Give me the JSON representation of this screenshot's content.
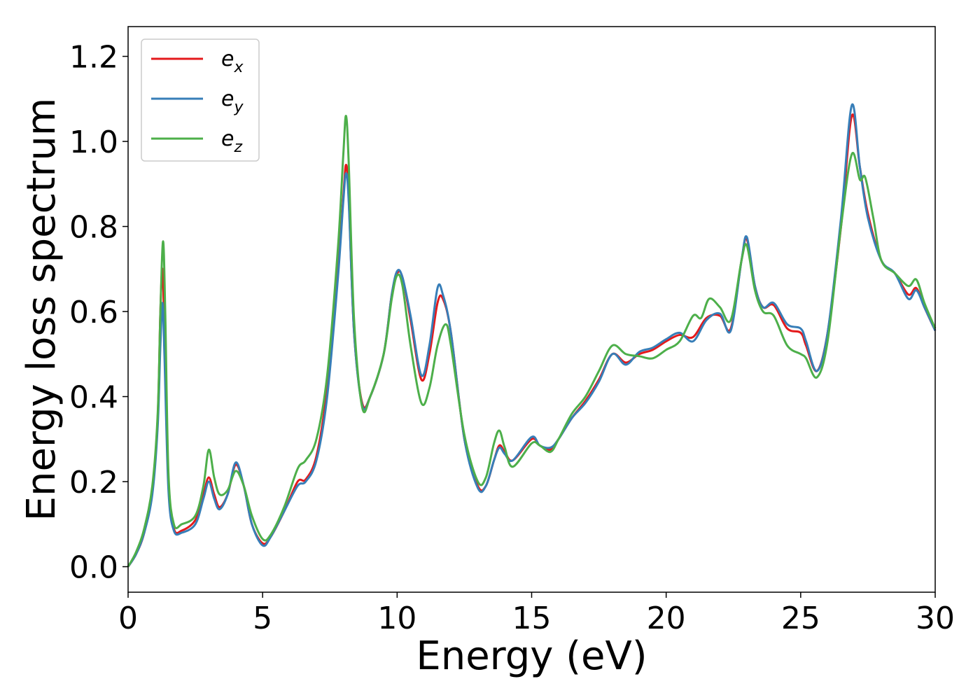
{
  "chart_data": {
    "type": "line",
    "xlabel": "Energy (eV)",
    "ylabel": "Energy loss spectrum",
    "xlim": [
      0,
      30
    ],
    "ylim": [
      -0.06,
      1.27
    ],
    "xticks": [
      "0",
      "5",
      "10",
      "15",
      "20",
      "25",
      "30"
    ],
    "yticks": [
      "0.0",
      "0.2",
      "0.4",
      "0.6",
      "0.8",
      "1.0",
      "1.2"
    ],
    "grid": false,
    "legend_position": "top-left",
    "series": [
      {
        "name": "e_x",
        "label_base": "e",
        "label_sub": "x",
        "color": "#e41a1c",
        "points": [
          [
            0,
            0
          ],
          [
            0.3,
            0.03
          ],
          [
            0.6,
            0.08
          ],
          [
            0.9,
            0.18
          ],
          [
            1.1,
            0.35
          ],
          [
            1.2,
            0.6
          ],
          [
            1.28,
            0.7
          ],
          [
            1.35,
            0.55
          ],
          [
            1.5,
            0.2
          ],
          [
            1.7,
            0.09
          ],
          [
            2.0,
            0.085
          ],
          [
            2.5,
            0.11
          ],
          [
            2.8,
            0.17
          ],
          [
            3.0,
            0.21
          ],
          [
            3.2,
            0.17
          ],
          [
            3.4,
            0.14
          ],
          [
            3.7,
            0.17
          ],
          [
            4.0,
            0.24
          ],
          [
            4.3,
            0.19
          ],
          [
            4.6,
            0.1
          ],
          [
            5.0,
            0.055
          ],
          [
            5.3,
            0.07
          ],
          [
            5.8,
            0.13
          ],
          [
            6.3,
            0.2
          ],
          [
            6.6,
            0.205
          ],
          [
            7.0,
            0.26
          ],
          [
            7.4,
            0.42
          ],
          [
            7.8,
            0.7
          ],
          [
            8.0,
            0.87
          ],
          [
            8.1,
            0.945
          ],
          [
            8.2,
            0.87
          ],
          [
            8.4,
            0.55
          ],
          [
            8.7,
            0.385
          ],
          [
            9.0,
            0.4
          ],
          [
            9.5,
            0.5
          ],
          [
            9.8,
            0.64
          ],
          [
            10.0,
            0.69
          ],
          [
            10.2,
            0.68
          ],
          [
            10.5,
            0.58
          ],
          [
            10.9,
            0.44
          ],
          [
            11.2,
            0.5
          ],
          [
            11.5,
            0.62
          ],
          [
            11.7,
            0.63
          ],
          [
            12.0,
            0.55
          ],
          [
            12.5,
            0.3
          ],
          [
            13.0,
            0.19
          ],
          [
            13.3,
            0.19
          ],
          [
            13.6,
            0.25
          ],
          [
            13.8,
            0.285
          ],
          [
            14.0,
            0.27
          ],
          [
            14.3,
            0.25
          ],
          [
            15.0,
            0.3
          ],
          [
            15.3,
            0.285
          ],
          [
            15.7,
            0.275
          ],
          [
            16.0,
            0.3
          ],
          [
            16.5,
            0.35
          ],
          [
            17.0,
            0.39
          ],
          [
            17.5,
            0.44
          ],
          [
            18.0,
            0.5
          ],
          [
            18.5,
            0.48
          ],
          [
            19.0,
            0.5
          ],
          [
            19.5,
            0.51
          ],
          [
            20.0,
            0.53
          ],
          [
            20.5,
            0.545
          ],
          [
            21.0,
            0.54
          ],
          [
            21.5,
            0.585
          ],
          [
            22.0,
            0.59
          ],
          [
            22.4,
            0.56
          ],
          [
            22.8,
            0.72
          ],
          [
            23.0,
            0.77
          ],
          [
            23.3,
            0.66
          ],
          [
            23.6,
            0.61
          ],
          [
            24.0,
            0.615
          ],
          [
            24.5,
            0.56
          ],
          [
            25.0,
            0.55
          ],
          [
            25.2,
            0.52
          ],
          [
            25.6,
            0.46
          ],
          [
            26.0,
            0.55
          ],
          [
            26.5,
            0.8
          ],
          [
            26.9,
            1.06
          ],
          [
            27.2,
            0.94
          ],
          [
            27.5,
            0.83
          ],
          [
            28.0,
            0.72
          ],
          [
            28.5,
            0.69
          ],
          [
            29.0,
            0.64
          ],
          [
            29.3,
            0.655
          ],
          [
            29.6,
            0.61
          ],
          [
            30.0,
            0.555
          ]
        ]
      },
      {
        "name": "e_y",
        "label_base": "e",
        "label_sub": "y",
        "color": "#377eb8",
        "points": [
          [
            0,
            0
          ],
          [
            0.3,
            0.03
          ],
          [
            0.6,
            0.08
          ],
          [
            0.9,
            0.17
          ],
          [
            1.1,
            0.33
          ],
          [
            1.2,
            0.52
          ],
          [
            1.28,
            0.62
          ],
          [
            1.35,
            0.5
          ],
          [
            1.5,
            0.18
          ],
          [
            1.7,
            0.085
          ],
          [
            2.0,
            0.08
          ],
          [
            2.5,
            0.1
          ],
          [
            2.8,
            0.16
          ],
          [
            3.0,
            0.2
          ],
          [
            3.2,
            0.16
          ],
          [
            3.4,
            0.135
          ],
          [
            3.7,
            0.17
          ],
          [
            4.0,
            0.245
          ],
          [
            4.3,
            0.19
          ],
          [
            4.6,
            0.1
          ],
          [
            5.0,
            0.05
          ],
          [
            5.3,
            0.07
          ],
          [
            5.8,
            0.13
          ],
          [
            6.3,
            0.19
          ],
          [
            6.6,
            0.2
          ],
          [
            7.0,
            0.25
          ],
          [
            7.4,
            0.4
          ],
          [
            7.8,
            0.68
          ],
          [
            8.0,
            0.86
          ],
          [
            8.1,
            0.925
          ],
          [
            8.2,
            0.86
          ],
          [
            8.4,
            0.55
          ],
          [
            8.7,
            0.38
          ],
          [
            9.0,
            0.4
          ],
          [
            9.5,
            0.5
          ],
          [
            9.8,
            0.64
          ],
          [
            10.0,
            0.695
          ],
          [
            10.2,
            0.68
          ],
          [
            10.5,
            0.59
          ],
          [
            10.9,
            0.45
          ],
          [
            11.2,
            0.52
          ],
          [
            11.5,
            0.655
          ],
          [
            11.7,
            0.64
          ],
          [
            12.0,
            0.55
          ],
          [
            12.5,
            0.3
          ],
          [
            13.0,
            0.185
          ],
          [
            13.3,
            0.19
          ],
          [
            13.6,
            0.25
          ],
          [
            13.8,
            0.28
          ],
          [
            14.0,
            0.265
          ],
          [
            14.3,
            0.25
          ],
          [
            15.0,
            0.305
          ],
          [
            15.3,
            0.285
          ],
          [
            15.7,
            0.28
          ],
          [
            16.0,
            0.3
          ],
          [
            16.5,
            0.35
          ],
          [
            17.0,
            0.385
          ],
          [
            17.5,
            0.435
          ],
          [
            18.0,
            0.5
          ],
          [
            18.5,
            0.475
          ],
          [
            19.0,
            0.505
          ],
          [
            19.5,
            0.515
          ],
          [
            20.0,
            0.535
          ],
          [
            20.5,
            0.55
          ],
          [
            21.0,
            0.53
          ],
          [
            21.5,
            0.58
          ],
          [
            22.0,
            0.595
          ],
          [
            22.4,
            0.555
          ],
          [
            22.8,
            0.72
          ],
          [
            23.0,
            0.775
          ],
          [
            23.3,
            0.66
          ],
          [
            23.6,
            0.61
          ],
          [
            24.0,
            0.62
          ],
          [
            24.5,
            0.57
          ],
          [
            25.0,
            0.56
          ],
          [
            25.2,
            0.53
          ],
          [
            25.6,
            0.46
          ],
          [
            26.0,
            0.55
          ],
          [
            26.5,
            0.82
          ],
          [
            26.9,
            1.085
          ],
          [
            27.2,
            0.94
          ],
          [
            27.5,
            0.82
          ],
          [
            28.0,
            0.72
          ],
          [
            28.5,
            0.69
          ],
          [
            29.0,
            0.63
          ],
          [
            29.3,
            0.65
          ],
          [
            29.6,
            0.61
          ],
          [
            30.0,
            0.555
          ]
        ]
      },
      {
        "name": "e_z",
        "label_base": "e",
        "label_sub": "z",
        "color": "#4daf4a",
        "points": [
          [
            0,
            0
          ],
          [
            0.3,
            0.035
          ],
          [
            0.6,
            0.09
          ],
          [
            0.9,
            0.19
          ],
          [
            1.1,
            0.36
          ],
          [
            1.2,
            0.6
          ],
          [
            1.3,
            0.765
          ],
          [
            1.38,
            0.6
          ],
          [
            1.5,
            0.22
          ],
          [
            1.7,
            0.1
          ],
          [
            2.0,
            0.1
          ],
          [
            2.5,
            0.12
          ],
          [
            2.8,
            0.19
          ],
          [
            3.0,
            0.275
          ],
          [
            3.2,
            0.21
          ],
          [
            3.4,
            0.17
          ],
          [
            3.7,
            0.18
          ],
          [
            4.0,
            0.225
          ],
          [
            4.3,
            0.19
          ],
          [
            4.6,
            0.12
          ],
          [
            5.0,
            0.065
          ],
          [
            5.3,
            0.075
          ],
          [
            5.8,
            0.14
          ],
          [
            6.3,
            0.23
          ],
          [
            6.6,
            0.25
          ],
          [
            7.0,
            0.3
          ],
          [
            7.4,
            0.45
          ],
          [
            7.8,
            0.75
          ],
          [
            8.0,
            0.97
          ],
          [
            8.1,
            1.06
          ],
          [
            8.2,
            0.95
          ],
          [
            8.4,
            0.58
          ],
          [
            8.7,
            0.375
          ],
          [
            9.0,
            0.4
          ],
          [
            9.5,
            0.5
          ],
          [
            9.8,
            0.63
          ],
          [
            10.0,
            0.685
          ],
          [
            10.2,
            0.66
          ],
          [
            10.5,
            0.52
          ],
          [
            10.9,
            0.385
          ],
          [
            11.2,
            0.42
          ],
          [
            11.5,
            0.52
          ],
          [
            11.8,
            0.57
          ],
          [
            12.0,
            0.52
          ],
          [
            12.5,
            0.31
          ],
          [
            13.0,
            0.2
          ],
          [
            13.3,
            0.21
          ],
          [
            13.6,
            0.29
          ],
          [
            13.8,
            0.32
          ],
          [
            14.0,
            0.28
          ],
          [
            14.3,
            0.235
          ],
          [
            15.0,
            0.29
          ],
          [
            15.3,
            0.285
          ],
          [
            15.7,
            0.27
          ],
          [
            16.0,
            0.3
          ],
          [
            16.5,
            0.36
          ],
          [
            17.0,
            0.4
          ],
          [
            17.5,
            0.46
          ],
          [
            18.0,
            0.52
          ],
          [
            18.5,
            0.5
          ],
          [
            19.0,
            0.495
          ],
          [
            19.5,
            0.49
          ],
          [
            20.0,
            0.51
          ],
          [
            20.5,
            0.53
          ],
          [
            21.0,
            0.59
          ],
          [
            21.3,
            0.585
          ],
          [
            21.6,
            0.63
          ],
          [
            22.0,
            0.61
          ],
          [
            22.4,
            0.58
          ],
          [
            22.8,
            0.72
          ],
          [
            23.0,
            0.755
          ],
          [
            23.3,
            0.65
          ],
          [
            23.6,
            0.6
          ],
          [
            24.0,
            0.59
          ],
          [
            24.5,
            0.52
          ],
          [
            25.0,
            0.5
          ],
          [
            25.2,
            0.49
          ],
          [
            25.6,
            0.445
          ],
          [
            26.0,
            0.53
          ],
          [
            26.5,
            0.8
          ],
          [
            26.9,
            0.97
          ],
          [
            27.2,
            0.91
          ],
          [
            27.4,
            0.915
          ],
          [
            27.7,
            0.82
          ],
          [
            28.0,
            0.72
          ],
          [
            28.5,
            0.69
          ],
          [
            29.0,
            0.66
          ],
          [
            29.3,
            0.675
          ],
          [
            29.6,
            0.62
          ],
          [
            30.0,
            0.56
          ]
        ]
      }
    ]
  }
}
